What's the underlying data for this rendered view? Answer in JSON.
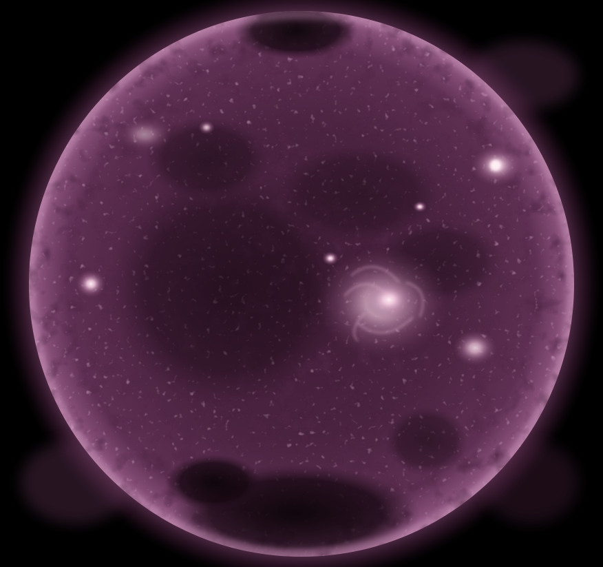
{
  "image": {
    "subject": "solar-disk",
    "colors": {
      "background": "#000000",
      "corona_outer": "#3a1730",
      "corona_mid": "#6e3a60",
      "limb_bright": "#c08aae",
      "disk_base": "#5a2c4c",
      "disk_dark": "#1c0a16",
      "coronal_hole": "#0d0509",
      "active_region_core": "#ffeef4",
      "active_region_glow": "#d8a8c6"
    },
    "features": [
      {
        "name": "north-coronal-hole"
      },
      {
        "name": "south-coronal-hole"
      },
      {
        "name": "central-active-region"
      },
      {
        "name": "northeast-active-region"
      },
      {
        "name": "east-limb-active-region"
      },
      {
        "name": "southwest-active-region"
      },
      {
        "name": "southern-brightening"
      }
    ]
  }
}
